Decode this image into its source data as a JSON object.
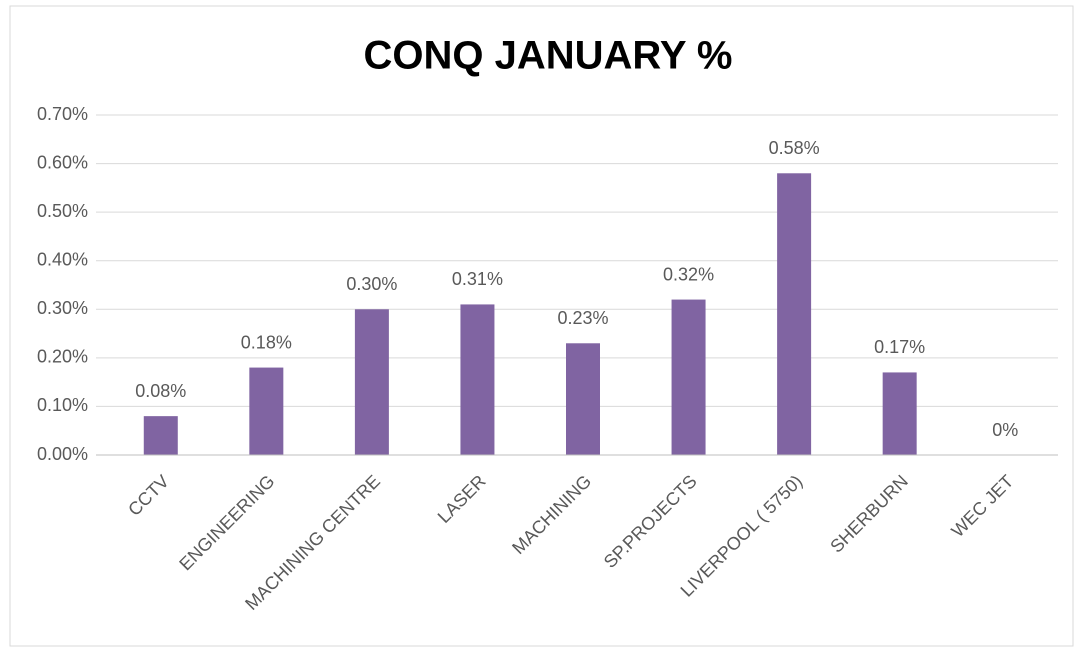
{
  "chart_data": {
    "type": "bar",
    "title": "CONQ JANUARY %",
    "categories": [
      "CCTV",
      "ENGINEERING",
      "MACHINING CENTRE",
      "LASER",
      "MACHINING",
      "SP.PROJECTS",
      "LIVERPOOL ( 5750)",
      "SHERBURN",
      "WEC JET"
    ],
    "values": [
      0.08,
      0.18,
      0.3,
      0.31,
      0.23,
      0.32,
      0.58,
      0.17,
      0
    ],
    "value_labels": [
      "0.08%",
      "0.18%",
      "0.30%",
      "0.31%",
      "0.23%",
      "0.32%",
      "0.58%",
      "0.17%",
      "0%"
    ],
    "color": "#8064a2",
    "ylim": [
      0,
      0.7
    ],
    "yticks": [
      {
        "value": 0,
        "label": "0.00%"
      },
      {
        "value": 0.1,
        "label": "0.10%"
      },
      {
        "value": 0.2,
        "label": "0.20%"
      },
      {
        "value": 0.3,
        "label": "0.30%"
      },
      {
        "value": 0.4,
        "label": "0.40%"
      },
      {
        "value": 0.5,
        "label": "0.50%"
      },
      {
        "value": 0.6,
        "label": "0.60%"
      },
      {
        "value": 0.7,
        "label": "0.70%"
      }
    ],
    "grid": true
  }
}
